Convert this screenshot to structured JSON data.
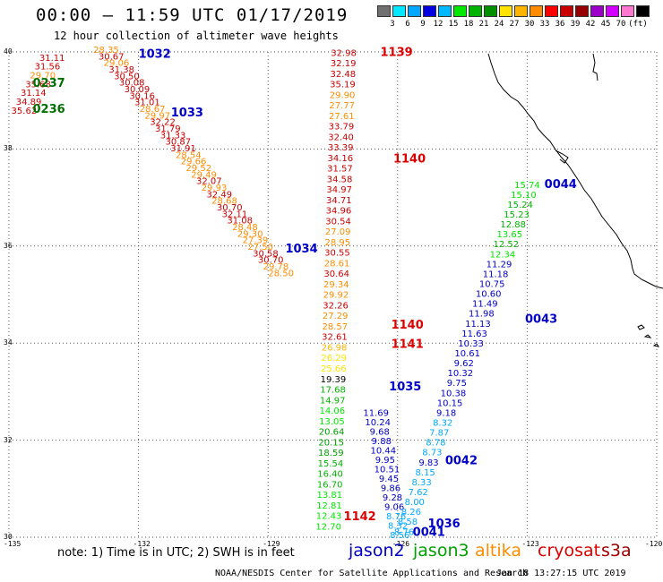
{
  "title": "00:00 – 11:59 UTC 01/17/2019",
  "subtitle": "12 hour collection of altimeter wave heights",
  "colorbar": {
    "colors": [
      "#707070",
      "#00e8ff",
      "#00a8ff",
      "#0000e0",
      "#00b8ff",
      "#00e800",
      "#00b400",
      "#009000",
      "#ffe400",
      "#ffb400",
      "#ff8c00",
      "#ff0000",
      "#c80000",
      "#960000",
      "#9c00c8",
      "#d400ff",
      "#ff78d0",
      "#000000"
    ],
    "ticks": [
      "3",
      "6",
      "9",
      "12",
      "15",
      "18",
      "21",
      "24",
      "27",
      "30",
      "33",
      "36",
      "39",
      "42",
      "45",
      "70"
    ],
    "unit": "(ft)"
  },
  "lat_labels": [
    "40",
    "38",
    "36",
    "34",
    "32",
    "30"
  ],
  "lon_labels": [
    "-135",
    "-132",
    "-129",
    "-126",
    "-123",
    "-120"
  ],
  "note": "note:  1) Time is in UTC;  2) SWH is in feet",
  "legend": [
    {
      "name": "jason2",
      "color": "#0000c8"
    },
    {
      "name": "jason3",
      "color": "#00a000"
    },
    {
      "name": "altika",
      "color": "#ff8c00"
    },
    {
      "name": "cryosat",
      "color": "#dc0000"
    },
    {
      "name": "s3a",
      "color": "#a00000"
    }
  ],
  "credit": "NOAA/NESDIS Center for Satellite Applications and Research",
  "generated": "Jan 18 13:27:15 UTC 2019",
  "pass_labels": [
    {
      "text": "1032",
      "lon": -132.0,
      "lat": 39.88,
      "color": "#0000c8"
    },
    {
      "text": "0237",
      "lon": -134.45,
      "lat": 39.28,
      "color": "#007000"
    },
    {
      "text": "0236",
      "lon": -134.45,
      "lat": 38.75,
      "color": "#007000"
    },
    {
      "text": "1033",
      "lon": -131.25,
      "lat": 38.67,
      "color": "#0000c8"
    },
    {
      "text": "1139",
      "lon": -126.4,
      "lat": 39.92,
      "color": "#dc0000"
    },
    {
      "text": "1140",
      "lon": -126.1,
      "lat": 37.72,
      "color": "#dc0000"
    },
    {
      "text": "0044",
      "lon": -122.6,
      "lat": 37.2,
      "color": "#0000c8"
    },
    {
      "text": "1034",
      "lon": -128.6,
      "lat": 35.87,
      "color": "#0000c8"
    },
    {
      "text": "0043",
      "lon": -123.05,
      "lat": 34.42,
      "color": "#0000c8"
    },
    {
      "text": "1140",
      "lon": -126.15,
      "lat": 34.3,
      "color": "#dc0000"
    },
    {
      "text": "1141",
      "lon": -126.15,
      "lat": 33.9,
      "color": "#dc0000"
    },
    {
      "text": "1035",
      "lon": -126.2,
      "lat": 33.03,
      "color": "#0000c8"
    },
    {
      "text": "0042",
      "lon": -124.9,
      "lat": 31.5,
      "color": "#0000c8"
    },
    {
      "text": "1142",
      "lon": -127.25,
      "lat": 30.35,
      "color": "#dc0000"
    },
    {
      "text": "1036",
      "lon": -125.3,
      "lat": 30.2,
      "color": "#0000c8"
    },
    {
      "text": "0041",
      "lon": -125.65,
      "lat": 30.03,
      "color": "#0000c8"
    }
  ],
  "tracks": [
    {
      "name": "track-1032-1034",
      "lon0": -132.75,
      "lat0": 39.98,
      "lon1": -128.7,
      "lat1": 35.38,
      "values": [
        "28.35",
        "30.67",
        "29.06",
        "31.38",
        "30.50",
        "30.08",
        "30.09",
        "30.16",
        "31.01",
        "28.67",
        "29.97",
        "32.22",
        "31.79",
        "31.33",
        "30.87",
        "31.91",
        "28.54",
        "29.66",
        "29.52",
        "29.49",
        "32.07",
        "29.93",
        "32.49",
        "28.68",
        "30.70",
        "32.11",
        "31.08",
        "28.48",
        "29.30",
        "27.39",
        "27.50",
        "30.58",
        "30.70",
        "29.78",
        "28.50"
      ],
      "colors": [
        "#ff8c00",
        "#c80000",
        "#ff8c00",
        "#c80000",
        "#c80000",
        "#c80000",
        "#c80000",
        "#c80000",
        "#c80000",
        "#ff8c00",
        "#ff8c00",
        "#c80000",
        "#c80000",
        "#c80000",
        "#c80000",
        "#c80000",
        "#ff8c00",
        "#ff8c00",
        "#ff8c00",
        "#ff8c00",
        "#c80000",
        "#ff8c00",
        "#c80000",
        "#ff8c00",
        "#c80000",
        "#c80000",
        "#c80000",
        "#ff8c00",
        "#ff8c00",
        "#ff8c00",
        "#ff8c00",
        "#c80000",
        "#c80000",
        "#ff8c00",
        "#ff8c00"
      ]
    },
    {
      "name": "track-0236-0237",
      "lon0": -134.0,
      "lat0": 39.82,
      "lon1": -134.65,
      "lat1": 38.73,
      "values": [
        "31.11",
        "31.56",
        "29.70",
        "35.68",
        "31.14",
        "34.89",
        "35.62"
      ],
      "colors": [
        "#c80000",
        "#c80000",
        "#ff8c00",
        "#c80000",
        "#c80000",
        "#c80000",
        "#c80000"
      ]
    },
    {
      "name": "track-1139-1142",
      "lon0": -127.25,
      "lat0": 39.92,
      "lon1": -127.6,
      "lat1": 30.16,
      "values": [
        "32.98",
        "32.19",
        "32.48",
        "35.19",
        "29.90",
        "27.77",
        "27.61",
        "33.79",
        "32.40",
        "33.39",
        "34.16",
        "31.57",
        "34.58",
        "34.97",
        "34.71",
        "34.96",
        "30.54",
        "27.09",
        "28.95",
        "30.55",
        "28.61",
        "30.64",
        "29.34",
        "29.92",
        "32.26",
        "27.29",
        "28.57",
        "32.61",
        "26.98",
        "26.29",
        "25.66",
        "19.39",
        "17.68",
        "14.97",
        "14.06",
        "13.05",
        "20.64",
        "20.15",
        "18.59",
        "15.54",
        "16.40",
        "16.70",
        "13.81",
        "12.81",
        "12.43",
        "12.70"
      ],
      "colors": [
        "#c80000",
        "#c80000",
        "#c80000",
        "#c80000",
        "#ff8c00",
        "#ff8c00",
        "#ff8c00",
        "#c80000",
        "#c80000",
        "#c80000",
        "#c80000",
        "#c80000",
        "#c80000",
        "#c80000",
        "#c80000",
        "#c80000",
        "#c80000",
        "#ff8c00",
        "#ff8c00",
        "#c80000",
        "#ff8c00",
        "#c80000",
        "#ff8c00",
        "#ff8c00",
        "#c80000",
        "#ff8c00",
        "#ff8c00",
        "#c80000",
        "#ffb400",
        "#ffe400",
        "#ffe400",
        "#000000",
        "#00b400",
        "#00b400",
        "#00e800",
        "#00e800",
        "#00a000",
        "#00a000",
        "#00a000",
        "#00b400",
        "#00b400",
        "#00b400",
        "#00e800",
        "#00e800",
        "#00e800",
        "#00e800"
      ]
    },
    {
      "name": "track-1035-1036",
      "lon0": -126.5,
      "lat0": 32.5,
      "lon1": -125.95,
      "lat1": 29.98,
      "values": [
        "11.69",
        "10.24",
        "9.68",
        "9.88",
        "10.44",
        "9.95",
        "10.51",
        "9.45",
        "9.86",
        "9.28",
        "9.06",
        "8.76",
        "8.32",
        "8.56"
      ],
      "colors": [
        "#0000c8",
        "#0000c8",
        "#0000c8",
        "#0000c8",
        "#0000c8",
        "#0000c8",
        "#0000c8",
        "#0000c8",
        "#0000c8",
        "#0000c8",
        "#0000c8",
        "#00a8ff",
        "#00a8ff",
        "#00a8ff"
      ]
    },
    {
      "name": "track-0041-0044",
      "lon0": -125.85,
      "lat0": 30.05,
      "lon1": -123.0,
      "lat1": 37.2,
      "values": [
        "8.76",
        "8.58",
        "8.26",
        "8.00",
        "7.62",
        "8.33",
        "8.15",
        "9.83",
        "8.73",
        "8.78",
        "7.87",
        "8.32",
        "9.18",
        "10.15",
        "10.38",
        "9.75",
        "10.32",
        "9.62",
        "10.61",
        "10.33",
        "11.63",
        "11.13",
        "11.98",
        "11.49",
        "10.60",
        "10.75",
        "11.18",
        "11.29",
        "12.34",
        "12.52",
        "13.65",
        "12.88",
        "15.23",
        "15.24",
        "15.10",
        "15.74"
      ],
      "colors": [
        "#00a8ff",
        "#00a8ff",
        "#00a8ff",
        "#00a8ff",
        "#00a8ff",
        "#00a8ff",
        "#00a8ff",
        "#0000c8",
        "#00a8ff",
        "#00a8ff",
        "#00a8ff",
        "#00a8ff",
        "#0000c8",
        "#0000c8",
        "#0000c8",
        "#0000c8",
        "#0000c8",
        "#0000c8",
        "#0000c8",
        "#0000c8",
        "#0000c8",
        "#0000c8",
        "#0000c8",
        "#0000c8",
        "#0000c8",
        "#0000c8",
        "#0000c8",
        "#0000c8",
        "#00e800",
        "#00b400",
        "#00e800",
        "#00b400",
        "#00b400",
        "#00b400",
        "#00e800",
        "#00e800"
      ]
    }
  ]
}
